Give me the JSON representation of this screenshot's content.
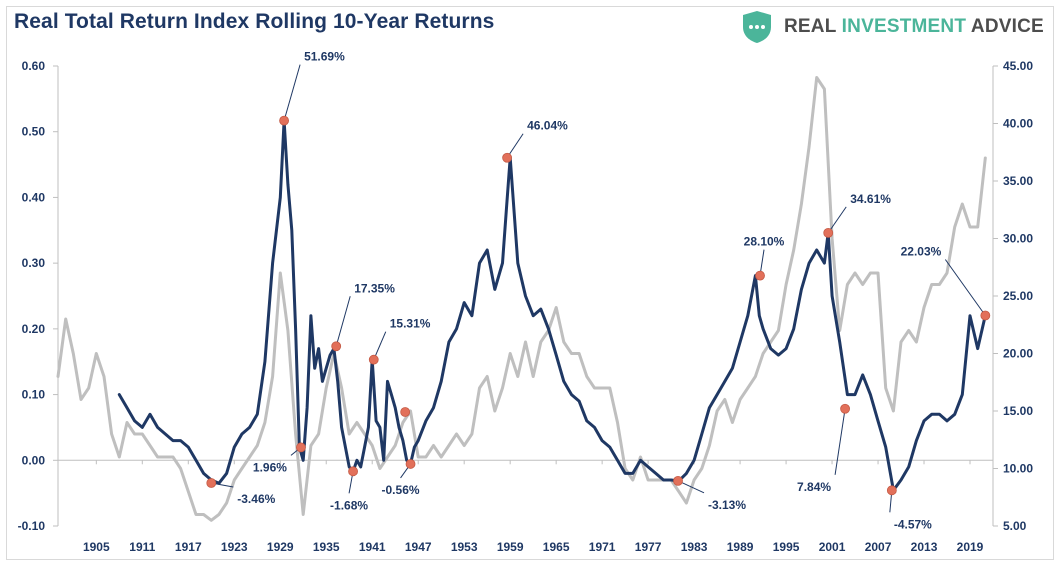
{
  "chart_data": {
    "type": "line",
    "title": "Real Total Return Index Rolling 10-Year Returns",
    "brand": {
      "parts": [
        "REAL ",
        "INVESTMENT",
        " ADVICE"
      ],
      "colors": {
        "text": "#4d4d4d",
        "accent": "#4bb59a",
        "shield": "#4bb59a"
      }
    },
    "left_axis": {
      "min": -0.1,
      "max": 0.6,
      "ticks": [
        -0.1,
        0.0,
        0.1,
        0.2,
        0.3,
        0.4,
        0.5,
        0.6
      ],
      "tick_labels": [
        "-0.10",
        "0.00",
        "0.10",
        "0.20",
        "0.30",
        "0.40",
        "0.50",
        "0.60"
      ]
    },
    "right_axis": {
      "min": 5,
      "max": 45,
      "ticks": [
        5,
        10,
        15,
        20,
        25,
        30,
        35,
        40,
        45
      ],
      "tick_labels": [
        "5.00",
        "10.00",
        "15.00",
        "20.00",
        "25.00",
        "30.00",
        "35.00",
        "40.00",
        "45.00"
      ]
    },
    "x_axis": {
      "min": 1900,
      "max": 2022,
      "tick_labels": [
        "1905",
        "1911",
        "1917",
        "1923",
        "1929",
        "1935",
        "1941",
        "1947",
        "1953",
        "1959",
        "1965",
        "1971",
        "1977",
        "1983",
        "1989",
        "1995",
        "2001",
        "2007",
        "2013",
        "2019"
      ],
      "tick_years": [
        1905,
        1911,
        1917,
        1923,
        1929,
        1935,
        1941,
        1947,
        1953,
        1959,
        1965,
        1971,
        1977,
        1983,
        1989,
        1995,
        2001,
        2007,
        2013,
        2019
      ]
    },
    "grid": false,
    "colors": {
      "returns": "#1f3864",
      "cape": "#bfbfbf",
      "marker": "#e2705a",
      "axis": "#bfbfbf",
      "text": "#1f3864"
    },
    "series": [
      {
        "axis": "left",
        "x": [
          1908,
          1909,
          1910,
          1911,
          1912,
          1913,
          1914,
          1915,
          1916,
          1917,
          1918,
          1919,
          1920,
          1921,
          1922,
          1923,
          1924,
          1925,
          1926,
          1927,
          1928,
          1929,
          1929.5,
          1930,
          1930.5,
          1931,
          1931.5,
          1932,
          1932.5,
          1933,
          1933.5,
          1934,
          1934.5,
          1935,
          1935.5,
          1936,
          1936.5,
          1937,
          1937.5,
          1938,
          1938.5,
          1939,
          1939.5,
          1940,
          1940.5,
          1941,
          1941.5,
          1942,
          1942.5,
          1943,
          1943.5,
          1944,
          1944.5,
          1945,
          1945.5,
          1946,
          1946.5,
          1947,
          1948,
          1949,
          1950,
          1951,
          1952,
          1953,
          1954,
          1955,
          1956,
          1957,
          1958,
          1958.5,
          1959,
          1960,
          1961,
          1962,
          1963,
          1964,
          1965,
          1966,
          1967,
          1968,
          1969,
          1970,
          1971,
          1972,
          1973,
          1974,
          1975,
          1976,
          1977,
          1978,
          1979,
          1980,
          1981,
          1982,
          1983,
          1984,
          1985,
          1986,
          1987,
          1988,
          1989,
          1990,
          1991,
          1991.5,
          1992,
          1993,
          1994,
          1995,
          1996,
          1997,
          1998,
          1999,
          2000,
          2000.5,
          2001,
          2002,
          2003,
          2004,
          2005,
          2006,
          2007,
          2008,
          2009,
          2010,
          2011,
          2012,
          2013,
          2014,
          2015,
          2016,
          2017,
          2018,
          2019,
          2020,
          2021
        ],
        "y": [
          0.1,
          0.08,
          0.06,
          0.05,
          0.07,
          0.05,
          0.04,
          0.03,
          0.03,
          0.02,
          0.0,
          -0.02,
          -0.03,
          -0.035,
          -0.02,
          0.02,
          0.04,
          0.05,
          0.07,
          0.15,
          0.3,
          0.4,
          0.5169,
          0.42,
          0.35,
          0.2,
          0.02,
          0.0,
          0.08,
          0.22,
          0.14,
          0.17,
          0.12,
          0.14,
          0.16,
          0.17,
          0.12,
          0.05,
          0.02,
          -0.01,
          -0.017,
          0.0,
          -0.01,
          0.02,
          0.05,
          0.1531,
          0.06,
          0.05,
          0.0,
          0.12,
          0.1,
          0.08,
          0.05,
          0.03,
          0.0,
          -0.0056,
          0.02,
          0.03,
          0.06,
          0.08,
          0.12,
          0.18,
          0.2,
          0.24,
          0.22,
          0.3,
          0.32,
          0.26,
          0.3,
          0.38,
          0.4604,
          0.3,
          0.25,
          0.22,
          0.23,
          0.2,
          0.16,
          0.12,
          0.1,
          0.09,
          0.06,
          0.05,
          0.03,
          0.02,
          0.0,
          -0.02,
          -0.02,
          0.0,
          -0.01,
          -0.02,
          -0.03,
          -0.03,
          -0.0313,
          -0.02,
          0.0,
          0.04,
          0.08,
          0.1,
          0.12,
          0.14,
          0.18,
          0.22,
          0.281,
          0.22,
          0.2,
          0.17,
          0.16,
          0.17,
          0.2,
          0.26,
          0.3,
          0.32,
          0.3,
          0.3461,
          0.25,
          0.18,
          0.1,
          0.1,
          0.13,
          0.1,
          0.06,
          0.02,
          -0.0457,
          -0.03,
          -0.01,
          0.03,
          0.06,
          0.07,
          0.07,
          0.06,
          0.07,
          0.1,
          0.22,
          0.17,
          0.2203
        ]
      },
      {
        "axis": "right",
        "x": [
          1900,
          1901,
          1902,
          1903,
          1904,
          1905,
          1906,
          1907,
          1908,
          1909,
          1910,
          1911,
          1912,
          1913,
          1914,
          1915,
          1916,
          1917,
          1918,
          1919,
          1920,
          1921,
          1922,
          1923,
          1924,
          1925,
          1926,
          1927,
          1928,
          1929,
          1930,
          1931,
          1932,
          1933,
          1934,
          1935,
          1936,
          1937,
          1938,
          1939,
          1940,
          1941,
          1942,
          1943,
          1944,
          1945,
          1946,
          1947,
          1948,
          1949,
          1950,
          1951,
          1952,
          1953,
          1954,
          1955,
          1956,
          1957,
          1958,
          1959,
          1960,
          1961,
          1962,
          1963,
          1964,
          1965,
          1966,
          1967,
          1968,
          1969,
          1970,
          1971,
          1972,
          1973,
          1974,
          1975,
          1976,
          1977,
          1978,
          1979,
          1980,
          1981,
          1982,
          1983,
          1984,
          1985,
          1986,
          1987,
          1988,
          1989,
          1990,
          1991,
          1992,
          1993,
          1994,
          1995,
          1996,
          1997,
          1998,
          1999,
          2000,
          2001,
          2002,
          2003,
          2004,
          2005,
          2006,
          2007,
          2008,
          2009,
          2010,
          2011,
          2012,
          2013,
          2014,
          2015,
          2016,
          2017,
          2018,
          2019,
          2020,
          2021
        ],
        "y": [
          18,
          23,
          20,
          16,
          17,
          20,
          18,
          13,
          11,
          14,
          13,
          13,
          12,
          11,
          11,
          11,
          10,
          8,
          6,
          6,
          5.5,
          6,
          7,
          9,
          10,
          11,
          12,
          14,
          18,
          27,
          22,
          13,
          6,
          12,
          13,
          17,
          20,
          17,
          13,
          14,
          13,
          12,
          10,
          11,
          12,
          14,
          15,
          11,
          11,
          12,
          11,
          12,
          13,
          12,
          13,
          17,
          18,
          15,
          17,
          20,
          18,
          21,
          18,
          21,
          22,
          24,
          21,
          20,
          20,
          18,
          17,
          17,
          17,
          14,
          10,
          9,
          11,
          9,
          9,
          9,
          9,
          8,
          7,
          9,
          10,
          12,
          15,
          16,
          14,
          16,
          17,
          18,
          20,
          21,
          22,
          26,
          29,
          33,
          38,
          44,
          43,
          30,
          22,
          26,
          27,
          26,
          27,
          27,
          17,
          15,
          21,
          22,
          21,
          24,
          26,
          26,
          27,
          31,
          33,
          31,
          31,
          37
        ]
      }
    ],
    "annotations": [
      {
        "label": "51.69%",
        "x": 1929.5,
        "y": 0.5169
      },
      {
        "label": "1.96%",
        "x": 1931.7,
        "y": 0.0196
      },
      {
        "label": "-3.46%",
        "x": 1920.0,
        "y": -0.0346
      },
      {
        "label": "17.35%",
        "x": 1936.3,
        "y": 0.1735
      },
      {
        "label": "-1.68%",
        "x": 1938.5,
        "y": -0.0168
      },
      {
        "label": "15.31%",
        "x": 1941.2,
        "y": 0.1531
      },
      {
        "label": "-0.56%",
        "x": 1946.0,
        "y": -0.0056
      },
      {
        "label": "46.04%",
        "x": 1958.6,
        "y": 0.4604
      },
      {
        "label": "-3.13%",
        "x": 1980.9,
        "y": -0.0313
      },
      {
        "label": "28.10%",
        "x": 1991.6,
        "y": 0.281
      },
      {
        "label": "34.61%",
        "x": 2000.5,
        "y": 0.3461
      },
      {
        "label": "7.84%",
        "x": 2002.7,
        "y": 0.0784
      },
      {
        "label": "-4.57%",
        "x": 2008.8,
        "y": -0.0457
      },
      {
        "label": "22.03%",
        "x": 2021.0,
        "y": 0.2203
      }
    ],
    "extra_markers": [
      {
        "x": 1945.3,
        "y": 0.0735
      }
    ]
  }
}
